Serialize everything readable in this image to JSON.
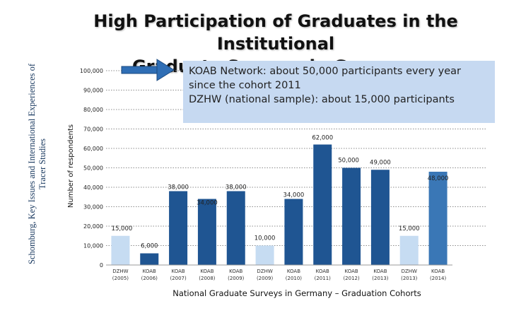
{
  "side_label": {
    "line1": "Schomburg, Key Issues and International Experiences of",
    "line2": "Tracer Studies"
  },
  "title": {
    "line1": "High Participation of Graduates in the Institutional",
    "line2": "Graduate Surveys in Germany"
  },
  "callout": {
    "line1": "KOAB Network: about 50,000 participants every year",
    "line2": "since the cohort 2011",
    "line3": "DZHW (national sample): about 15,000 participants",
    "background": "#c6d9f1",
    "arrow_color": "#2f6eb5"
  },
  "chart_data": {
    "type": "bar",
    "ylabel": "Number of respondents",
    "xlabel": "National Graduate Surveys in Germany – Graduation Cohorts",
    "ylim": [
      0,
      100000
    ],
    "yticks": [
      0,
      10000,
      20000,
      30000,
      40000,
      50000,
      60000,
      70000,
      80000,
      90000,
      100000
    ],
    "ytick_labels": [
      "0",
      "10,000",
      "20,000",
      "30,000",
      "40,000",
      "50,000",
      "60,000",
      "70,000",
      "80,000",
      "90,000",
      "100,000"
    ],
    "grid": "horizontal dotted",
    "categories": [
      {
        "line1": "DZHW",
        "line2": "(2005)"
      },
      {
        "line1": "KOAB",
        "line2": "(2006)"
      },
      {
        "line1": "KOAB",
        "line2": "(2007)"
      },
      {
        "line1": "KOAB",
        "line2": "(2008)"
      },
      {
        "line1": "KOAB",
        "line2": "(2009)"
      },
      {
        "line1": "DZHW",
        "line2": "(2009)"
      },
      {
        "line1": "KOAB",
        "line2": "(2010)"
      },
      {
        "line1": "KOAB",
        "line2": "(2011)"
      },
      {
        "line1": "KOAB",
        "line2": "(2012)"
      },
      {
        "line1": "KOAB",
        "line2": "(2013)"
      },
      {
        "line1": "DZHW",
        "line2": "(2013)"
      },
      {
        "line1": "KOAB",
        "line2": "(2014)"
      }
    ],
    "values": [
      15000,
      6000,
      38000,
      34000,
      38000,
      10000,
      34000,
      62000,
      50000,
      49000,
      15000,
      48000
    ],
    "data_labels": [
      "15,000",
      "6,000",
      "38,000",
      "34,000",
      "38,000",
      "10,000",
      "34,000",
      "62,000",
      "50,000",
      "49,000",
      "15,000",
      "48,000"
    ],
    "colors": {
      "KOAB": "#1f5592",
      "DZHW": "#c6dcf2",
      "KOAB_2014": "#3a77b6"
    },
    "bar_colors": [
      "#c6dcf2",
      "#1f5592",
      "#1f5592",
      "#1f5592",
      "#1f5592",
      "#c6dcf2",
      "#1f5592",
      "#1f5592",
      "#1f5592",
      "#1f5592",
      "#c6dcf2",
      "#3a77b6"
    ]
  }
}
